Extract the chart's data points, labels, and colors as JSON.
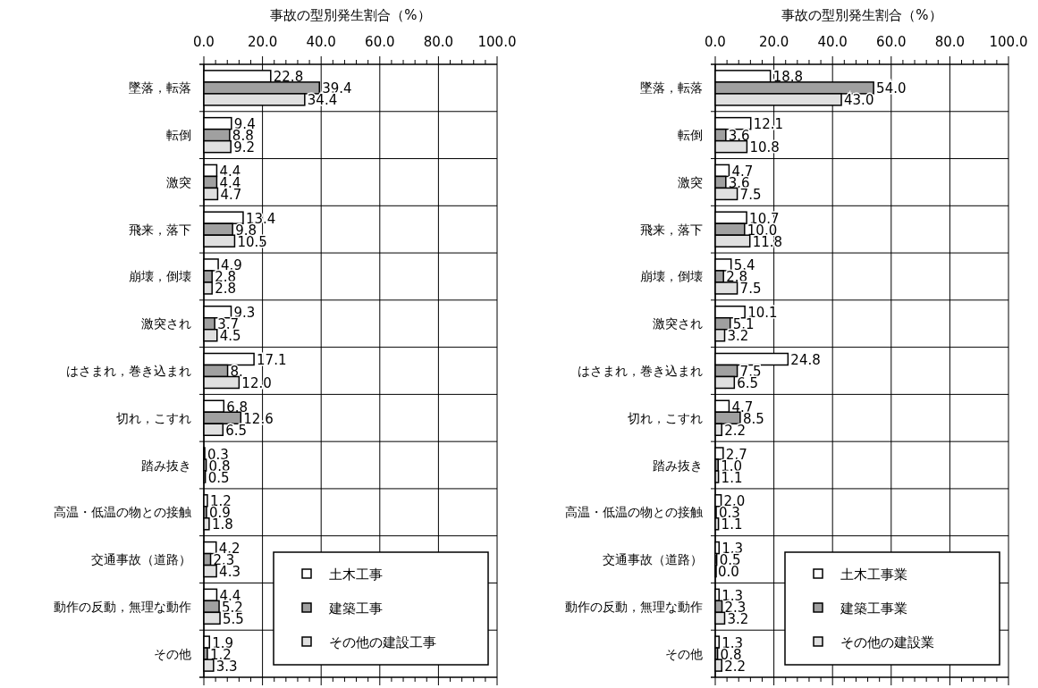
{
  "chart_data": [
    {
      "type": "bar",
      "orientation": "horizontal",
      "xlabel": "事故の型別発生割合（%）",
      "categories": [
        "墜落，転落",
        "転倒",
        "激突",
        "飛来，落下",
        "崩壊，倒壊",
        "激突され",
        "はさまれ，巻き込まれ",
        "切れ，こすれ",
        "踏み抜き",
        "高温・低温の物との接触",
        "交通事故（道路）",
        "動作の反動，無理な動作",
        "その他"
      ],
      "series": [
        {
          "name": "土木工事",
          "color": "#ffffff",
          "values": [
            22.8,
            9.4,
            4.4,
            13.4,
            4.9,
            9.3,
            17.1,
            6.8,
            0.3,
            1.2,
            4.2,
            4.4,
            1.9
          ],
          "value_labels": [
            "22.8",
            "9.4",
            "4.4",
            "13.4",
            "4.9",
            "9.3",
            "17.1",
            "6.8",
            "0.3",
            "1.2",
            "4.2",
            "4.4",
            "1.9"
          ]
        },
        {
          "name": "建築工事",
          "color": "#a0a0a0",
          "values": [
            39.4,
            8.8,
            4.4,
            9.8,
            2.8,
            3.7,
            8.1,
            12.6,
            0.8,
            0.9,
            2.3,
            5.2,
            1.2
          ],
          "value_labels": [
            "39.4",
            "8.8",
            "4.4",
            "9.8",
            "2.8",
            "3.7",
            "8.",
            "12.6",
            "0.8",
            "0.9",
            "2.3",
            "5.2",
            "1.2"
          ]
        },
        {
          "name": "その他の建設工事",
          "color": "#e0e0e0",
          "values": [
            34.4,
            9.2,
            4.7,
            10.5,
            2.8,
            4.5,
            12.0,
            6.5,
            0.5,
            1.8,
            4.3,
            5.5,
            3.3
          ],
          "value_labels": [
            "34.4",
            "9.2",
            "4.7",
            "10.5",
            "2.8",
            "4.5",
            "12.0",
            "6.5",
            "0.5",
            "1.8",
            "4.3",
            "5.5",
            "3.3"
          ]
        }
      ],
      "xlim": [
        0,
        100
      ],
      "xticks": [
        {
          "value": 0,
          "label": "0.0"
        },
        {
          "value": 20,
          "label": "20.0"
        },
        {
          "value": 40,
          "label": "40.0"
        },
        {
          "value": 60,
          "label": "60.0"
        },
        {
          "value": 80,
          "label": "80.0"
        },
        {
          "value": 100,
          "label": "100.0"
        }
      ],
      "grid": true,
      "legend": "bottom right"
    },
    {
      "type": "bar",
      "orientation": "horizontal",
      "xlabel": "事故の型別発生割合（%）",
      "categories": [
        "墜落，転落",
        "転倒",
        "激突",
        "飛来，落下",
        "崩壊，倒壊",
        "激突され",
        "はさまれ，巻き込まれ",
        "切れ，こすれ",
        "踏み抜き",
        "高温・低温の物との接触",
        "交通事故（道路）",
        "動作の反動，無理な動作",
        "その他"
      ],
      "series": [
        {
          "name": "土木工事業",
          "color": "#ffffff",
          "values": [
            18.8,
            12.1,
            4.7,
            10.7,
            5.4,
            10.1,
            24.8,
            4.7,
            2.7,
            2.0,
            1.3,
            1.3,
            1.3
          ],
          "value_labels": [
            "18.8",
            "12.1",
            "4.7",
            "10.7",
            "5.4",
            "10.1",
            "24.8",
            "4.7",
            "2.7",
            "2.0",
            "1.3",
            "1.3",
            "1.3"
          ]
        },
        {
          "name": "建築工事業",
          "color": "#a0a0a0",
          "values": [
            54.0,
            3.6,
            3.6,
            10.0,
            2.8,
            5.1,
            7.5,
            8.5,
            1.0,
            0.3,
            0.5,
            2.3,
            0.8
          ],
          "value_labels": [
            "54.0",
            "3.6",
            "3.6",
            "10.0",
            "2.8",
            "5.1",
            "7.5",
            "8.5",
            "1.0",
            "0.3",
            "0.5",
            "2.3",
            "0.8"
          ]
        },
        {
          "name": "その他の建設業",
          "color": "#e0e0e0",
          "values": [
            43.0,
            10.8,
            7.5,
            11.8,
            7.5,
            3.2,
            6.5,
            2.2,
            1.1,
            1.1,
            0.0,
            3.2,
            2.2
          ],
          "value_labels": [
            "43.0",
            "10.8",
            "7.5",
            "11.8",
            "7.5",
            "3.2",
            "6.5",
            "2.2",
            "1.1",
            "1.1",
            "0.0",
            "3.2",
            "2.2"
          ]
        }
      ],
      "xlim": [
        0,
        100
      ],
      "xticks": [
        {
          "value": 0,
          "label": "0.0"
        },
        {
          "value": 20,
          "label": "20.0"
        },
        {
          "value": 40,
          "label": "40.0"
        },
        {
          "value": 60,
          "label": "60.0"
        },
        {
          "value": 80,
          "label": "80.0"
        },
        {
          "value": 100,
          "label": "100.0"
        }
      ],
      "grid": true,
      "legend": "bottom right"
    }
  ]
}
